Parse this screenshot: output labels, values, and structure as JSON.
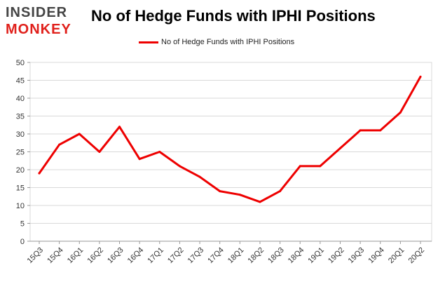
{
  "logo": {
    "line1": "INSIDER",
    "line2": "MONKEY"
  },
  "title": "No of Hedge Funds with IPHI Positions",
  "colors": {
    "series": "#ee0000",
    "grid": "#d9d9d9",
    "axis": "#999999",
    "logo_dark": "#444444",
    "logo_red": "#e0201b"
  },
  "chart_data": {
    "type": "line",
    "categories": [
      "15Q3",
      "15Q4",
      "16Q1",
      "16Q2",
      "16Q3",
      "16Q4",
      "17Q1",
      "17Q2",
      "17Q3",
      "17Q4",
      "18Q1",
      "18Q2",
      "18Q3",
      "18Q4",
      "19Q1",
      "19Q2",
      "19Q3",
      "19Q4",
      "20Q1",
      "20Q2"
    ],
    "series": [
      {
        "name": "No of Hedge Funds with IPHI Positions",
        "values": [
          19,
          27,
          30,
          25,
          32,
          23,
          25,
          21,
          18,
          14,
          13,
          11,
          14,
          21,
          21,
          26,
          31,
          31,
          36,
          46
        ]
      }
    ],
    "ylim": [
      0,
      50
    ],
    "yticks": [
      0,
      5,
      10,
      15,
      20,
      25,
      30,
      35,
      40,
      45,
      50
    ],
    "grid": true,
    "legend_position": "top-center"
  }
}
